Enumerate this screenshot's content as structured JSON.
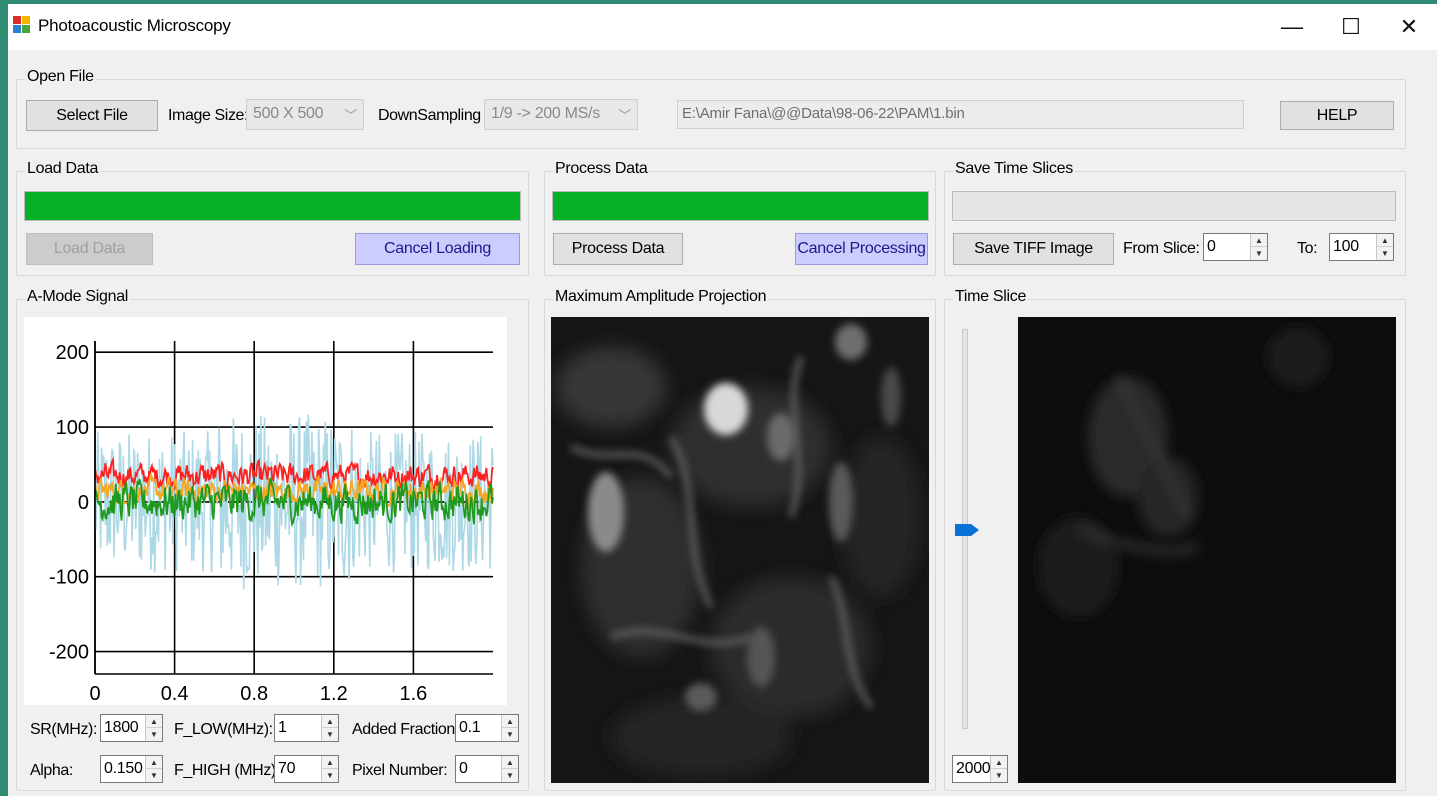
{
  "window": {
    "title": "Photoacoustic Microscopy",
    "controls": {
      "minimize": "—",
      "maximize": "☐",
      "close": "✕"
    }
  },
  "open_file": {
    "group_label": "Open File",
    "select_button": "Select File",
    "image_size_label": "Image Size:",
    "image_size_value": "500 X 500",
    "downsampling_label": "DownSampling :",
    "downsampling_value": "1/9   -> 200 MS/s",
    "file_path": "E:\\Amir Fana\\@@Data\\98-06-22\\PAM\\1.bin",
    "help_button": "HELP"
  },
  "load_data": {
    "group_label": "Load Data",
    "progress": 1.0,
    "load_button": "Load Data",
    "cancel_button": "Cancel Loading"
  },
  "process_data": {
    "group_label": "Process Data",
    "progress": 1.0,
    "process_button": "Process Data",
    "cancel_button": "Cancel Processing"
  },
  "save_slices": {
    "group_label": "Save Time Slices",
    "progress": 0,
    "save_button": "Save TIFF Image",
    "from_label": "From Slice:",
    "from_value": "0",
    "to_label": "To:",
    "to_value": "100"
  },
  "amode": {
    "group_label": "A-Mode Signal",
    "params": {
      "sr_label": "SR(MHz):",
      "sr_value": "1800",
      "flow_label": "F_LOW(MHz):",
      "flow_value": "1",
      "added_label": "Added Fraction:",
      "added_value": "0.1",
      "alpha_label": "Alpha:",
      "alpha_value": "0.150",
      "fhigh_label": "F_HIGH (MHz):",
      "fhigh_value": "70",
      "pixel_label": "Pixel Number:",
      "pixel_value": "0"
    }
  },
  "chart_data": {
    "type": "line",
    "xlim": [
      0,
      2.0
    ],
    "ylim": [
      -230,
      215
    ],
    "x_ticks": [
      "0",
      "0.4",
      "0.8",
      "1.2",
      "1.6"
    ],
    "y_ticks": [
      "200",
      "100",
      "0",
      "-100",
      "-200"
    ],
    "grid": true,
    "series": [
      {
        "color": "#add8e6",
        "center": 0,
        "amplitude": 95
      },
      {
        "color": "#ff2020",
        "center": 35,
        "amplitude": 18
      },
      {
        "color": "#f5a623",
        "center": 15,
        "amplitude": 18
      },
      {
        "color": "#1f9a1f",
        "center": 0,
        "amplitude": 28
      }
    ]
  },
  "mip": {
    "group_label": "Maximum Amplitude Projection"
  },
  "time_slice": {
    "group_label": "Time Slice",
    "slider_value": "2000",
    "slider_level": 0.54
  }
}
